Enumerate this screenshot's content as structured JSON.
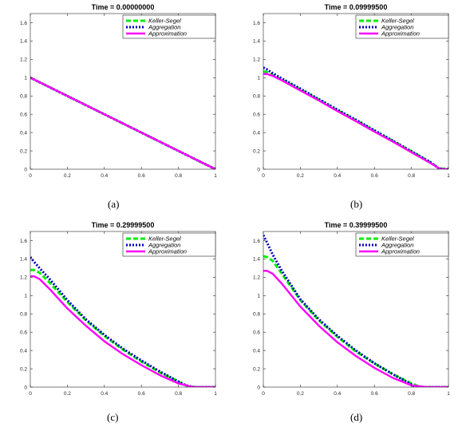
{
  "legend_labels": [
    "Keller-Segel",
    "Aggregation",
    "Approximation"
  ],
  "colors": {
    "keller_segel": "#00ee00",
    "aggregation": "#0000bb",
    "approximation": "#ff00ff"
  },
  "chart_data": [
    {
      "type": "line",
      "title": "Time =    0.00000000",
      "caption": "(a)",
      "xlim": [
        0,
        1
      ],
      "ylim": [
        0,
        1.7
      ],
      "xticks": [
        "0",
        "0.2",
        "0.4",
        "0.6",
        "0.8",
        "1"
      ],
      "yticks": [
        "0",
        "0.2",
        "0.4",
        "0.6",
        "0.8",
        "1",
        "1.2",
        "1.4",
        "1.6"
      ],
      "legend": "top-right",
      "series": [
        {
          "name": "Keller-Segel",
          "style": "dashed",
          "x": [
            0,
            1
          ],
          "y": [
            1,
            0
          ]
        },
        {
          "name": "Aggregation",
          "style": "dotted",
          "x": [
            0,
            1
          ],
          "y": [
            1,
            0
          ]
        },
        {
          "name": "Approximation",
          "style": "solid",
          "x": [
            0,
            1
          ],
          "y": [
            1,
            0
          ]
        }
      ]
    },
    {
      "type": "line",
      "title": "Time =    0.09999500",
      "caption": "(b)",
      "xlim": [
        0,
        1
      ],
      "ylim": [
        0,
        1.7
      ],
      "xticks": [
        "0",
        "0.2",
        "0.4",
        "0.6",
        "0.8",
        "1"
      ],
      "yticks": [
        "0",
        "0.2",
        "0.4",
        "0.6",
        "0.8",
        "1",
        "1.2",
        "1.4",
        "1.6"
      ],
      "legend": "top-right",
      "series": [
        {
          "name": "Keller-Segel",
          "style": "dashed",
          "x": [
            0,
            0.02,
            0.05,
            0.1,
            0.2,
            0.3,
            0.4,
            0.5,
            0.6,
            0.7,
            0.8,
            0.9,
            0.95,
            1
          ],
          "y": [
            1.07,
            1.06,
            1.03,
            0.98,
            0.87,
            0.76,
            0.645,
            0.535,
            0.42,
            0.31,
            0.195,
            0.08,
            0.01,
            0
          ]
        },
        {
          "name": "Aggregation",
          "style": "dotted",
          "x": [
            0,
            0.02,
            0.05,
            0.1,
            0.2,
            0.3,
            0.4,
            0.5,
            0.6,
            0.7,
            0.8,
            0.9,
            0.95,
            1
          ],
          "y": [
            1.11,
            1.09,
            1.05,
            0.99,
            0.88,
            0.765,
            0.65,
            0.54,
            0.425,
            0.31,
            0.195,
            0.08,
            0.005,
            0
          ]
        },
        {
          "name": "Approximation",
          "style": "solid",
          "x": [
            0,
            0.02,
            0.05,
            0.1,
            0.2,
            0.3,
            0.4,
            0.5,
            0.6,
            0.7,
            0.8,
            0.9,
            0.96,
            1
          ],
          "y": [
            1.04,
            1.04,
            1.02,
            0.97,
            0.86,
            0.75,
            0.635,
            0.525,
            0.41,
            0.3,
            0.185,
            0.07,
            0,
            0
          ]
        }
      ]
    },
    {
      "type": "line",
      "title": "Time =    0.29999500",
      "caption": "(c)",
      "xlim": [
        0,
        1
      ],
      "ylim": [
        0,
        1.7
      ],
      "xticks": [
        "0",
        "0.2",
        "0.4",
        "0.6",
        "0.8",
        "1"
      ],
      "yticks": [
        "0",
        "0.2",
        "0.4",
        "0.6",
        "0.8",
        "1",
        "1.2",
        "1.4",
        "1.6"
      ],
      "legend": "top-right",
      "series": [
        {
          "name": "Keller-Segel",
          "style": "dashed",
          "x": [
            0,
            0.02,
            0.05,
            0.1,
            0.2,
            0.3,
            0.4,
            0.5,
            0.6,
            0.7,
            0.8,
            0.85,
            0.9,
            1
          ],
          "y": [
            1.28,
            1.28,
            1.25,
            1.15,
            0.93,
            0.73,
            0.56,
            0.41,
            0.28,
            0.16,
            0.06,
            0.01,
            0,
            0
          ]
        },
        {
          "name": "Aggregation",
          "style": "dotted",
          "x": [
            0,
            0.02,
            0.05,
            0.1,
            0.2,
            0.3,
            0.4,
            0.5,
            0.6,
            0.7,
            0.8,
            0.84,
            0.88,
            1
          ],
          "y": [
            1.42,
            1.37,
            1.3,
            1.19,
            0.95,
            0.74,
            0.57,
            0.42,
            0.29,
            0.17,
            0.06,
            0.02,
            0,
            0
          ]
        },
        {
          "name": "Approximation",
          "style": "solid",
          "x": [
            0,
            0.02,
            0.05,
            0.1,
            0.2,
            0.3,
            0.4,
            0.5,
            0.6,
            0.7,
            0.8,
            0.87,
            0.9,
            1
          ],
          "y": [
            1.21,
            1.21,
            1.18,
            1.08,
            0.86,
            0.67,
            0.5,
            0.36,
            0.24,
            0.13,
            0.04,
            0.005,
            0,
            0
          ]
        }
      ]
    },
    {
      "type": "line",
      "title": "Time =    0.39999500",
      "caption": "(d)",
      "xlim": [
        0,
        1
      ],
      "ylim": [
        0,
        1.7
      ],
      "xticks": [
        "0",
        "0.2",
        "0.4",
        "0.6",
        "0.8",
        "1"
      ],
      "yticks": [
        "0",
        "0.2",
        "0.4",
        "0.6",
        "0.8",
        "1",
        "1.2",
        "1.4",
        "1.6"
      ],
      "legend": "top-right",
      "series": [
        {
          "name": "Keller-Segel",
          "style": "dashed",
          "x": [
            0,
            0.02,
            0.05,
            0.1,
            0.2,
            0.3,
            0.4,
            0.5,
            0.6,
            0.7,
            0.8,
            0.85,
            1
          ],
          "y": [
            1.43,
            1.42,
            1.38,
            1.24,
            0.95,
            0.73,
            0.55,
            0.39,
            0.26,
            0.14,
            0.04,
            0,
            0
          ]
        },
        {
          "name": "Aggregation",
          "style": "dotted",
          "x": [
            0,
            0.02,
            0.05,
            0.1,
            0.2,
            0.3,
            0.4,
            0.5,
            0.6,
            0.7,
            0.8,
            0.82,
            1
          ],
          "y": [
            1.66,
            1.58,
            1.45,
            1.27,
            0.96,
            0.74,
            0.56,
            0.4,
            0.26,
            0.14,
            0.03,
            0,
            0
          ]
        },
        {
          "name": "Approximation",
          "style": "solid",
          "x": [
            0,
            0.02,
            0.05,
            0.1,
            0.2,
            0.3,
            0.4,
            0.5,
            0.6,
            0.7,
            0.8,
            0.88,
            1
          ],
          "y": [
            1.27,
            1.27,
            1.24,
            1.13,
            0.88,
            0.67,
            0.49,
            0.34,
            0.21,
            0.1,
            0.02,
            0,
            0
          ]
        }
      ]
    }
  ]
}
